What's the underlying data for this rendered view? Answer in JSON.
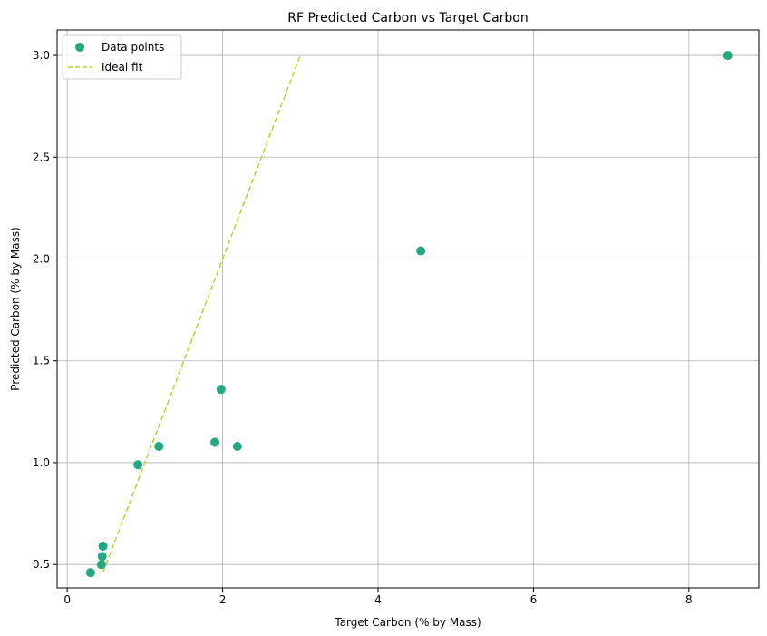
{
  "chart_data": {
    "type": "scatter",
    "title": "RF Predicted Carbon vs Target Carbon",
    "xlabel": "Target Carbon (% by Mass)",
    "ylabel": "Predicted Carbon (% by Mass)",
    "xlim": [
      -0.13,
      8.9
    ],
    "ylim": [
      0.385,
      3.125
    ],
    "x_ticks": [
      0,
      2,
      4,
      6,
      8
    ],
    "x_tick_labels": [
      "0",
      "2",
      "4",
      "6",
      "8"
    ],
    "y_ticks": [
      0.5,
      1.0,
      1.5,
      2.0,
      2.5,
      3.0
    ],
    "y_tick_labels": [
      "0.5",
      "1.0",
      "1.5",
      "2.0",
      "2.5",
      "3.0"
    ],
    "grid": true,
    "legend_position": "top-left",
    "series": [
      {
        "name": "Data points",
        "kind": "scatter",
        "color": "#23a982",
        "points": [
          {
            "x": 0.3,
            "y": 0.46
          },
          {
            "x": 0.44,
            "y": 0.5
          },
          {
            "x": 0.45,
            "y": 0.54
          },
          {
            "x": 0.46,
            "y": 0.59
          },
          {
            "x": 0.91,
            "y": 0.99
          },
          {
            "x": 1.18,
            "y": 1.08
          },
          {
            "x": 1.9,
            "y": 1.1
          },
          {
            "x": 1.98,
            "y": 1.36
          },
          {
            "x": 2.19,
            "y": 1.08
          },
          {
            "x": 4.55,
            "y": 2.04
          },
          {
            "x": 8.5,
            "y": 3.0
          }
        ]
      },
      {
        "name": "Ideal fit",
        "kind": "line",
        "style": "dashed",
        "color": "#bcd42a",
        "points": [
          {
            "x": 0.46,
            "y": 0.46
          },
          {
            "x": 3.0,
            "y": 3.0
          }
        ]
      }
    ]
  }
}
